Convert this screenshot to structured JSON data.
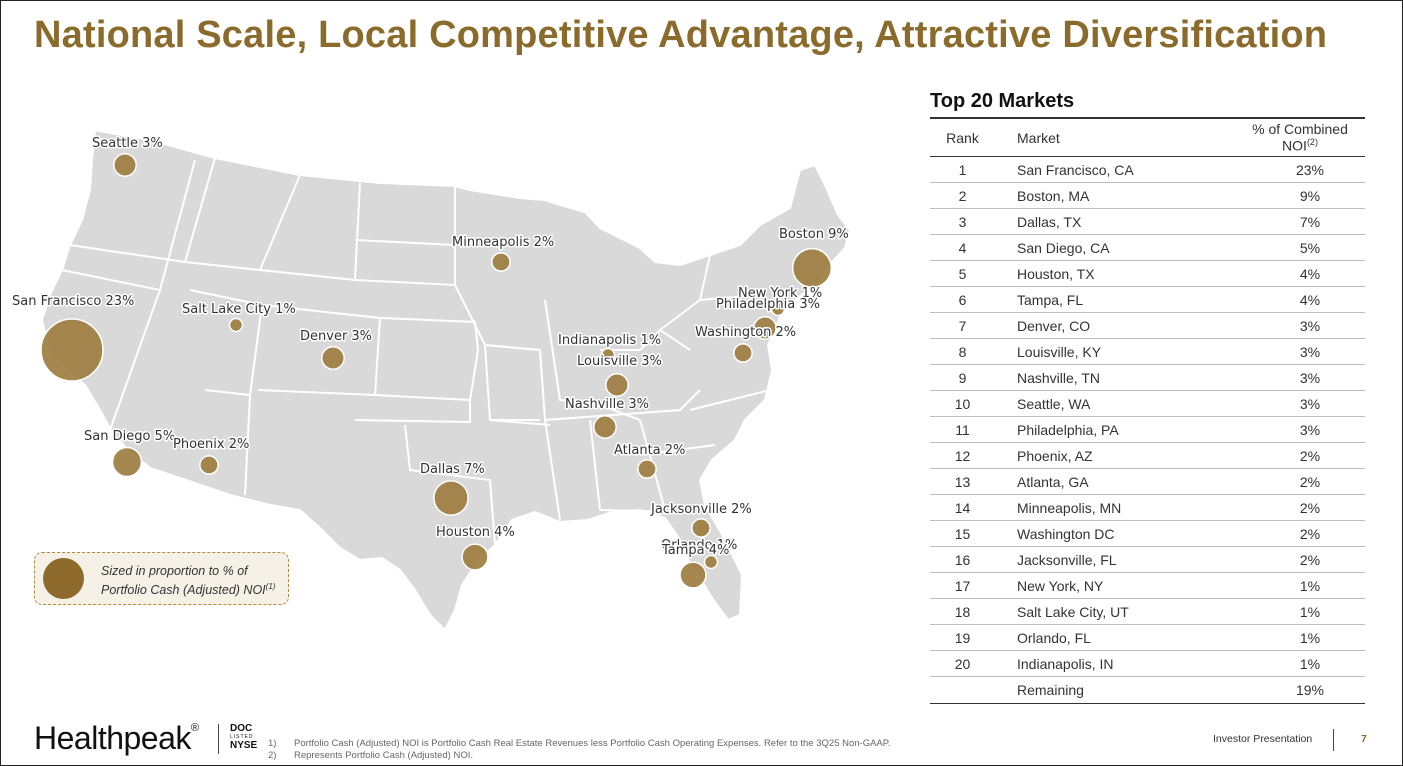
{
  "title": "National Scale, Local Competitive Advantage, Attractive Diversification",
  "colors": {
    "accent": "#8b6b2c",
    "bubble": "#9c7a3c",
    "map_fill": "#d9d9d9"
  },
  "map": {
    "cities": [
      {
        "label": "Seattle 3%",
        "pct": 3
      },
      {
        "label": "San Francisco 23%",
        "pct": 23
      },
      {
        "label": "Salt Lake City 1%",
        "pct": 1
      },
      {
        "label": "Denver 3%",
        "pct": 3
      },
      {
        "label": "San Diego 5%",
        "pct": 5
      },
      {
        "label": "Phoenix 2%",
        "pct": 2
      },
      {
        "label": "Dallas 7%",
        "pct": 7
      },
      {
        "label": "Houston 4%",
        "pct": 4
      },
      {
        "label": "Minneapolis 2%",
        "pct": 2
      },
      {
        "label": "Indianapolis 1%",
        "pct": 1
      },
      {
        "label": "Louisville 3%",
        "pct": 3
      },
      {
        "label": "Nashville 3%",
        "pct": 3
      },
      {
        "label": "Atlanta 2%",
        "pct": 2
      },
      {
        "label": "Jacksonville 2%",
        "pct": 2
      },
      {
        "label": "Orlando 1%",
        "pct": 1
      },
      {
        "label": "Tampa 4%",
        "pct": 4
      },
      {
        "label": "Boston 9%",
        "pct": 9
      },
      {
        "label": "New York 1%",
        "pct": 1
      },
      {
        "label": "Philadelphia 3%",
        "pct": 3
      },
      {
        "label": "Washington 2%",
        "pct": 2
      }
    ],
    "legend_line1": "Sized in proportion to % of",
    "legend_line2": "Portfolio Cash (Adjusted) NOI",
    "legend_sup": "(1)"
  },
  "table": {
    "title": "Top 20 Markets",
    "headers": {
      "rank": "Rank",
      "market": "Market",
      "pct": "% of Combined NOI",
      "pct_sup": "(2)"
    },
    "rows": [
      {
        "rank": "1",
        "market": "San Francisco, CA",
        "pct": "23%"
      },
      {
        "rank": "2",
        "market": "Boston, MA",
        "pct": "9%"
      },
      {
        "rank": "3",
        "market": "Dallas, TX",
        "pct": "7%"
      },
      {
        "rank": "4",
        "market": "San Diego, CA",
        "pct": "5%"
      },
      {
        "rank": "5",
        "market": "Houston, TX",
        "pct": "4%"
      },
      {
        "rank": "6",
        "market": "Tampa, FL",
        "pct": "4%"
      },
      {
        "rank": "7",
        "market": "Denver, CO",
        "pct": "3%"
      },
      {
        "rank": "8",
        "market": "Louisville, KY",
        "pct": "3%"
      },
      {
        "rank": "9",
        "market": "Nashville, TN",
        "pct": "3%"
      },
      {
        "rank": "10",
        "market": "Seattle, WA",
        "pct": "3%"
      },
      {
        "rank": "11",
        "market": "Philadelphia, PA",
        "pct": "3%"
      },
      {
        "rank": "12",
        "market": "Phoenix, AZ",
        "pct": "2%"
      },
      {
        "rank": "13",
        "market": "Atlanta, GA",
        "pct": "2%"
      },
      {
        "rank": "14",
        "market": "Minneapolis, MN",
        "pct": "2%"
      },
      {
        "rank": "15",
        "market": "Washington DC",
        "pct": "2%"
      },
      {
        "rank": "16",
        "market": "Jacksonville, FL",
        "pct": "2%"
      },
      {
        "rank": "17",
        "market": "New York, NY",
        "pct": "1%"
      },
      {
        "rank": "18",
        "market": "Salt Lake City, UT",
        "pct": "1%"
      },
      {
        "rank": "19",
        "market": "Orlando, FL",
        "pct": "1%"
      },
      {
        "rank": "20",
        "market": "Indianapolis, IN",
        "pct": "1%"
      },
      {
        "rank": "",
        "market": "Remaining",
        "pct": "19%"
      }
    ]
  },
  "footer": {
    "logo": "Healthpeak",
    "logo_mark": "®",
    "ticker_top": "DOC",
    "ticker_mid": "LISTED",
    "ticker_bottom": "NYSE",
    "footnotes": [
      {
        "num": "1)",
        "text": "Portfolio Cash (Adjusted) NOI is Portfolio Cash Real Estate Revenues less Portfolio Cash Operating Expenses. Refer to the 3Q25 Non-GAAP."
      },
      {
        "num": "2)",
        "text": "Represents Portfolio Cash (Adjusted) NOI."
      }
    ],
    "deck_label": "Investor Presentation",
    "page_number": "7"
  }
}
